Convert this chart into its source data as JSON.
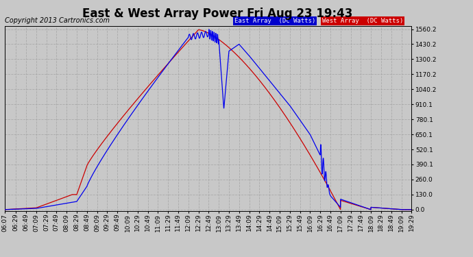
{
  "title": "East & West Array Power Fri Aug 23 19:43",
  "copyright": "Copyright 2013 Cartronics.com",
  "background_color": "#c8c8c8",
  "plot_background_color": "#c8c8c8",
  "east_color": "#0000ee",
  "west_color": "#cc0000",
  "legend_east_label": "East Array  (DC Watts)",
  "legend_west_label": "West Array  (DC Watts)",
  "legend_east_bg": "#0000cc",
  "legend_west_bg": "#cc0000",
  "y_ticks": [
    0.0,
    130.0,
    260.0,
    390.1,
    520.1,
    650.1,
    780.1,
    910.1,
    1040.2,
    1170.2,
    1300.2,
    1430.2,
    1560.2
  ],
  "y_max": 1590,
  "y_min": -10,
  "grid_color": "#aaaaaa",
  "title_fontsize": 12,
  "axis_fontsize": 6.5,
  "copyright_fontsize": 7,
  "xtick_labels": [
    "06:07",
    "06:29",
    "06:49",
    "07:09",
    "07:29",
    "07:49",
    "08:09",
    "08:29",
    "08:49",
    "09:09",
    "09:29",
    "09:49",
    "10:09",
    "10:29",
    "10:49",
    "11:09",
    "11:29",
    "11:49",
    "12:09",
    "12:29",
    "12:49",
    "13:09",
    "13:29",
    "13:49",
    "14:09",
    "14:29",
    "14:49",
    "15:09",
    "15:29",
    "15:49",
    "16:09",
    "16:29",
    "16:49",
    "17:09",
    "17:29",
    "17:49",
    "18:09",
    "18:29",
    "18:49",
    "19:09",
    "19:29"
  ]
}
